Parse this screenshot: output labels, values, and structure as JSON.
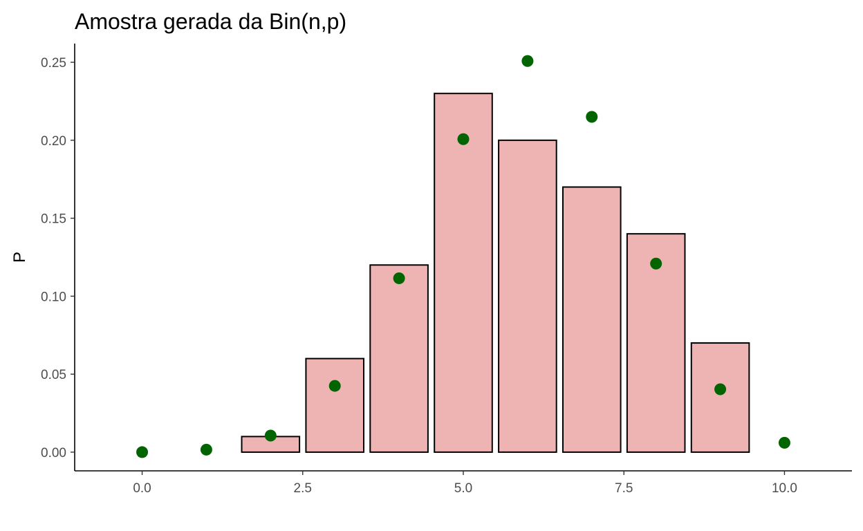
{
  "chart_data": {
    "type": "bar",
    "title": "Amostra gerada da Bin(n,p)",
    "xlabel": "",
    "ylabel": "P",
    "xlim": [
      -1.05,
      11.05
    ],
    "ylim": [
      -0.012,
      0.262
    ],
    "x_ticks": [
      0.0,
      2.5,
      5.0,
      7.5,
      10.0
    ],
    "x_tick_labels": [
      "0.0",
      "2.5",
      "5.0",
      "7.5",
      "10.0"
    ],
    "y_ticks": [
      0.0,
      0.05,
      0.1,
      0.15,
      0.2,
      0.25
    ],
    "y_tick_labels": [
      "0.00",
      "0.05",
      "0.10",
      "0.15",
      "0.20",
      "0.25"
    ],
    "grid": false,
    "series": [
      {
        "type": "bar",
        "x": [
          2,
          3,
          4,
          5,
          6,
          7,
          8,
          9
        ],
        "values": [
          0.01,
          0.06,
          0.12,
          0.23,
          0.2,
          0.17,
          0.14,
          0.07
        ],
        "color": "#edb4b3",
        "edge_color": "#000000"
      },
      {
        "type": "scatter",
        "x": [
          0,
          1,
          2,
          3,
          4,
          5,
          6,
          7,
          8,
          9,
          10
        ],
        "values": [
          0.0,
          0.0016,
          0.0106,
          0.0425,
          0.1115,
          0.2007,
          0.2508,
          0.215,
          0.1209,
          0.0403,
          0.006
        ],
        "color": "#006400"
      }
    ]
  }
}
